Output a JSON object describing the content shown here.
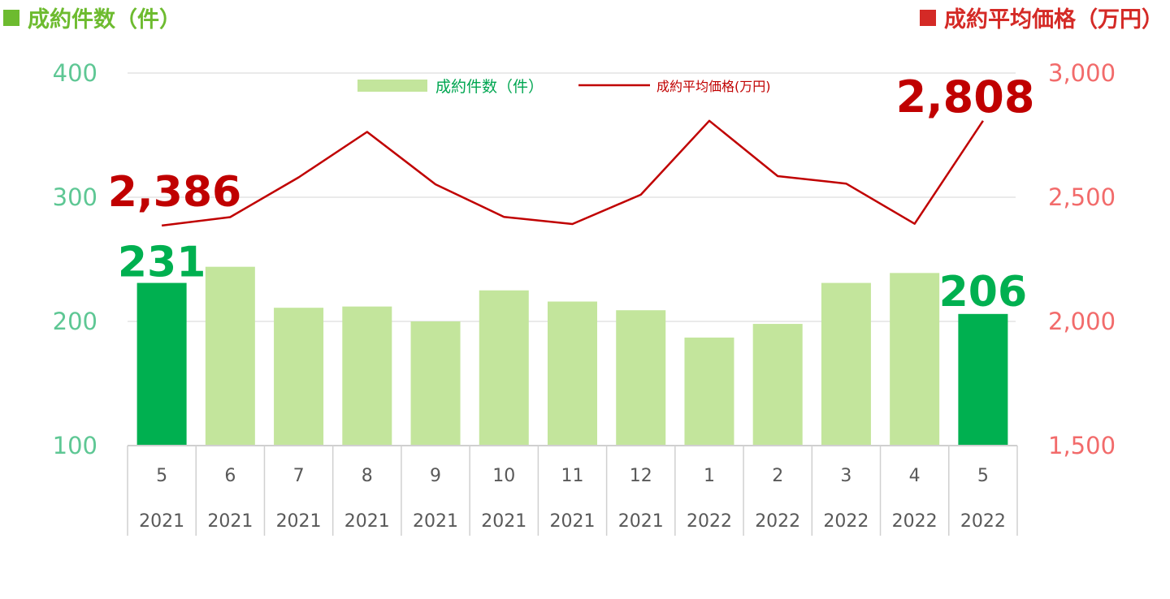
{
  "header": {
    "left_title": "成約件数（件）",
    "right_title": "成約平均価格（万円）"
  },
  "legend": {
    "bar_label": "成約件数（件）",
    "line_label": "成約平均価格(万円)"
  },
  "colors": {
    "bar_light": "#C3E59C",
    "bar_highlight": "#00B050",
    "line": "#C00000",
    "left_axis": "#5EC794",
    "right_axis": "#F26B6B",
    "left_header": "#6DBB2F",
    "right_header": "#D42A26"
  },
  "chart_data": {
    "type": "bar+line",
    "categories": [
      {
        "month": "5",
        "year": "2021"
      },
      {
        "month": "6",
        "year": "2021"
      },
      {
        "month": "7",
        "year": "2021"
      },
      {
        "month": "8",
        "year": "2021"
      },
      {
        "month": "9",
        "year": "2021"
      },
      {
        "month": "10",
        "year": "2021"
      },
      {
        "month": "11",
        "year": "2021"
      },
      {
        "month": "12",
        "year": "2021"
      },
      {
        "month": "1",
        "year": "2022"
      },
      {
        "month": "2",
        "year": "2022"
      },
      {
        "month": "3",
        "year": "2022"
      },
      {
        "month": "4",
        "year": "2022"
      },
      {
        "month": "5",
        "year": "2022"
      }
    ],
    "series": [
      {
        "name": "成約件数（件）",
        "type": "bar",
        "axis": "left",
        "values": [
          231,
          244,
          211,
          212,
          200,
          225,
          216,
          209,
          187,
          198,
          231,
          239,
          206
        ],
        "highlight": [
          0,
          12
        ]
      },
      {
        "name": "成約平均価格(万円)",
        "type": "line",
        "axis": "right",
        "values": [
          2386,
          2420,
          2580,
          2763,
          2552,
          2421,
          2392,
          2510,
          2808,
          2585,
          2555,
          2393,
          2808
        ]
      }
    ],
    "y_left": {
      "min": 100,
      "max": 400,
      "ticks": [
        "100",
        "200",
        "300",
        "400"
      ]
    },
    "y_right": {
      "min": 1500,
      "max": 3000,
      "ticks": [
        "1,500",
        "2,000",
        "2,500",
        "3,000"
      ]
    },
    "data_labels": {
      "bar_first": "231",
      "bar_last": "206",
      "line_first": "2,386",
      "line_last": "2,808"
    },
    "grid": true,
    "legend_position": "top-center"
  }
}
